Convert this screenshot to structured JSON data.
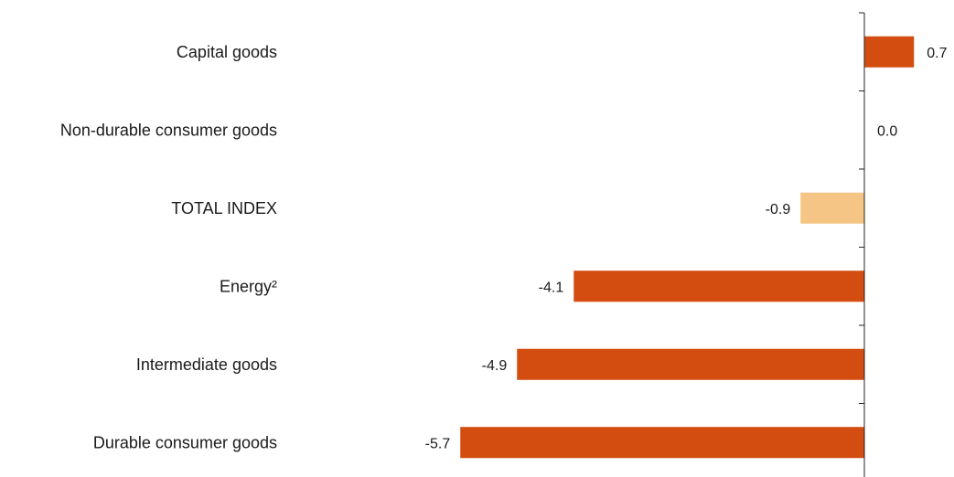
{
  "chart_data": {
    "type": "bar",
    "orientation": "horizontal",
    "categories": [
      "Capital goods",
      "Non-durable consumer goods",
      "TOTAL INDEX",
      "Energy²",
      "Intermediate goods",
      "Durable consumer goods"
    ],
    "values": [
      0.7,
      0.0,
      -0.9,
      -4.1,
      -4.9,
      -5.7
    ],
    "value_labels": [
      "0.7",
      "0.0",
      "-0.9",
      "-4.1",
      "-4.9",
      "-5.7"
    ],
    "bar_colors": [
      "#d34d10",
      "#d34d10",
      "#f5c585",
      "#d34d10",
      "#d34d10",
      "#d34d10"
    ],
    "title": "",
    "xlabel": "",
    "ylabel": "",
    "xlim": [
      -5.7,
      0.7
    ],
    "grid": false,
    "legend": "none"
  },
  "colors": {
    "highlight": "#f5c585",
    "default": "#d34d10",
    "axis": "#262626"
  }
}
